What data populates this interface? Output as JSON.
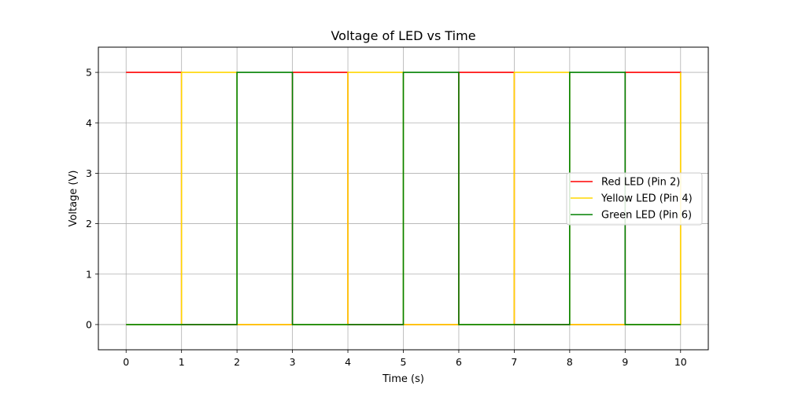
{
  "chart_data": {
    "type": "line",
    "step": true,
    "title": "Voltage of LED vs Time",
    "xlabel": "Time (s)",
    "ylabel": "Voltage (V)",
    "xlim": [
      -0.5,
      10.5
    ],
    "ylim": [
      -0.5,
      5.5
    ],
    "xticks": [
      0,
      1,
      2,
      3,
      4,
      5,
      6,
      7,
      8,
      9,
      10
    ],
    "yticks": [
      0,
      1,
      2,
      3,
      4,
      5
    ],
    "grid": true,
    "legend_position": "center-right",
    "series": [
      {
        "name": "Red LED (Pin 2)",
        "color": "#ff0000",
        "x": [
          0,
          1,
          1,
          3,
          3,
          4,
          4,
          6,
          6,
          7,
          7,
          9,
          9,
          10,
          10
        ],
        "y": [
          5,
          5,
          0,
          0,
          5,
          5,
          0,
          0,
          5,
          5,
          0,
          0,
          5,
          5,
          0
        ]
      },
      {
        "name": "Yellow LED (Pin 4)",
        "color": "#ffd700",
        "x": [
          0,
          1,
          1,
          2,
          2,
          4,
          4,
          5,
          5,
          7,
          7,
          8,
          8,
          10,
          10
        ],
        "y": [
          0,
          0,
          5,
          5,
          0,
          0,
          5,
          5,
          0,
          0,
          5,
          5,
          0,
          0,
          5
        ]
      },
      {
        "name": "Green LED (Pin 6)",
        "color": "#008000",
        "x": [
          0,
          2,
          2,
          3,
          3,
          5,
          5,
          6,
          6,
          8,
          8,
          9,
          9,
          10
        ],
        "y": [
          0,
          0,
          5,
          5,
          0,
          0,
          5,
          5,
          0,
          0,
          5,
          5,
          0,
          0
        ]
      }
    ]
  }
}
